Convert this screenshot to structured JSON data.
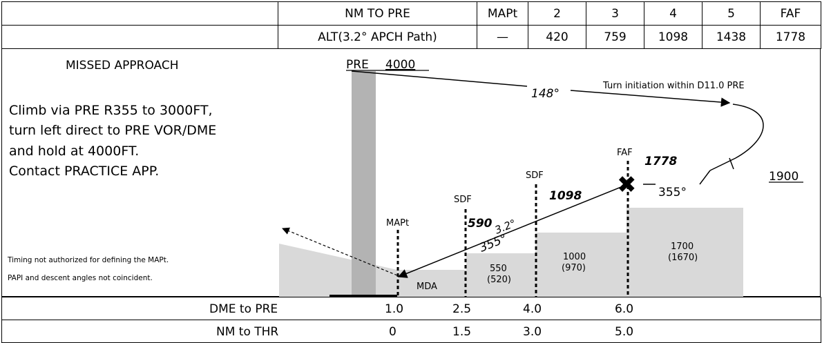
{
  "table_top": {
    "row1": [
      "",
      "NM TO PRE",
      "MAPt",
      "2",
      "3",
      "4",
      "5",
      "FAF"
    ],
    "row2": [
      "",
      "ALT(3.2°  APCH Path)",
      "—",
      "420",
      "759",
      "1098",
      "1438",
      "1778"
    ]
  },
  "missed_approach": {
    "title": "MISSED APPROACH",
    "lines": [
      "Climb via PRE R355 to 3000FT,",
      "turn left direct to PRE VOR/DME",
      "and hold at 4000FT.",
      "Contact PRACTICE APP."
    ]
  },
  "notes": [
    "Timing not authorized for defining the MAPt.",
    "PAPI and descent angles not coincident."
  ],
  "profile": {
    "pre_label": "PRE",
    "pre_alt": "4000",
    "outbound_course": "148°",
    "turn_note": "Turn initiation within D11.0 PRE",
    "fix_alt": "1900",
    "inbound_course": "355°",
    "faf_label": "FAF",
    "faf_alt": "1778",
    "sdf1_label": "SDF",
    "sdf1_alt": "590",
    "sdf2_label": "SDF",
    "sdf2_alt": "1098",
    "path_angle": "3.2°",
    "path_course": "355°",
    "mapt_label": "MAPt",
    "mda_label": "MDA",
    "obstacles": [
      {
        "alt": "550",
        "height": "(520)"
      },
      {
        "alt": "1000",
        "height": "(970)"
      },
      {
        "alt": "1700",
        "height": "(1670)"
      }
    ]
  },
  "table_bottom": {
    "row1_label": "DME to PRE",
    "row1_values": [
      "1.0",
      "2.5",
      "4.0",
      "6.0"
    ],
    "row2_label": "NM to THR",
    "row2_values": [
      "0",
      "1.5",
      "3.0",
      "5.0"
    ]
  }
}
